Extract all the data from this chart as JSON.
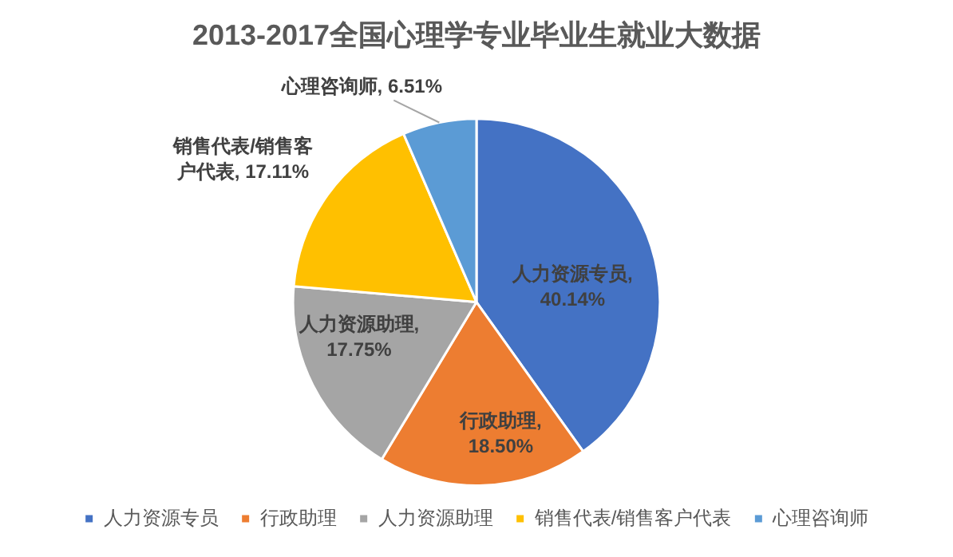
{
  "chart_data": {
    "type": "pie",
    "title": "2013-2017全国心理学专业毕业生就业大数据",
    "categories": [
      "人力资源专员",
      "行政助理",
      "人力资源助理",
      "销售代表/销售客户代表",
      "心理咨询师"
    ],
    "values": [
      40.14,
      18.5,
      17.75,
      17.11,
      6.51
    ],
    "value_labels": [
      "人力资源专员, 40.14%",
      "行政助理, 18.50%",
      "人力资源助理, 17.75%",
      "销售代表/销售客户代表, 17.11%",
      "心理咨询师, 6.51%"
    ],
    "colors": [
      "#4472c4",
      "#ed7d31",
      "#a5a5a5",
      "#ffc000",
      "#5b9bd5"
    ],
    "legend": "bottom"
  }
}
